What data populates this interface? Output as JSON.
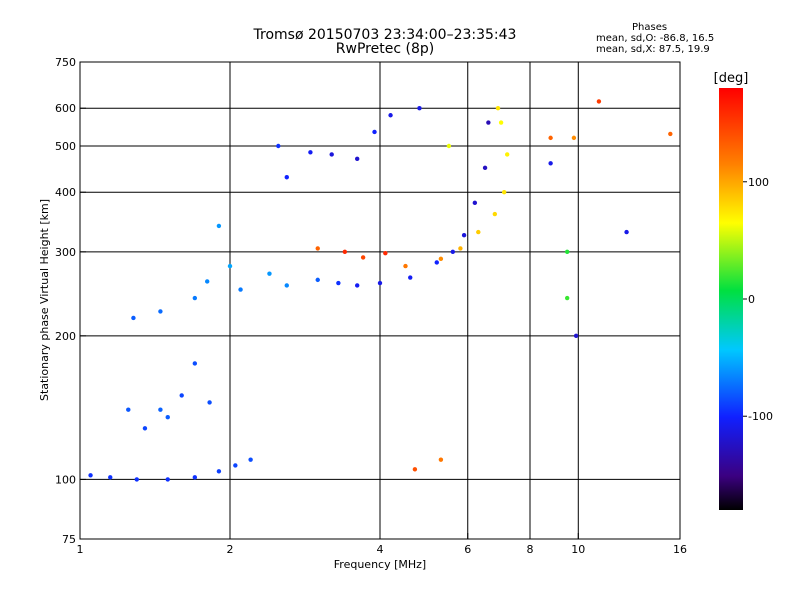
{
  "title": "Tromsø 20150703 23:34:00–23:35:43",
  "subtitle": "RwPretec (8p)",
  "stats": {
    "heading": "Phases",
    "o_line": "mean, sd,O: -86.8, 16.5",
    "x_line": "mean, sd,X: 87.5, 19.9"
  },
  "chart_data": {
    "type": "scatter",
    "title": "Tromsø 20150703 23:34:00–23:35:43",
    "subtitle": "RwPretec (8p)",
    "xlabel": "Frequency [MHz]",
    "ylabel": "Stationary phase Virtual Height [km]",
    "xscale": "log",
    "yscale": "log",
    "xlim": [
      1,
      16
    ],
    "ylim": [
      75,
      750
    ],
    "x_ticks": [
      1,
      2,
      4,
      6,
      8,
      10,
      16
    ],
    "x_tick_labels": [
      "1",
      "2",
      "4",
      "6",
      "8",
      "10",
      "16"
    ],
    "x_grid": [
      2,
      4,
      6,
      8,
      10
    ],
    "y_ticks": [
      75,
      100,
      200,
      300,
      400,
      500,
      600,
      750
    ],
    "y_tick_labels": [
      "75",
      "100",
      "200",
      "300",
      "400",
      "500",
      "600",
      "750"
    ],
    "y_grid": [
      100,
      200,
      300,
      400,
      500,
      600
    ],
    "grid": true,
    "colorbar": {
      "label": "[deg]",
      "range": [
        -180,
        180
      ],
      "ticks": [
        -100,
        0,
        100
      ],
      "tick_labels": [
        "-100",
        "0",
        "100"
      ]
    },
    "series": [
      {
        "values": [
          [
            1.05,
            102,
            -95
          ],
          [
            1.15,
            101,
            -95
          ],
          [
            1.3,
            100,
            -95
          ],
          [
            1.5,
            100,
            -95
          ],
          [
            1.7,
            101,
            -95
          ],
          [
            1.9,
            104,
            -90
          ],
          [
            2.05,
            107,
            -88
          ],
          [
            2.2,
            110,
            -85
          ],
          [
            1.6,
            150,
            -88
          ],
          [
            1.7,
            175,
            -85
          ],
          [
            1.5,
            135,
            -80
          ],
          [
            1.35,
            128,
            -88
          ],
          [
            1.25,
            140,
            -82
          ],
          [
            1.45,
            140,
            -78
          ],
          [
            1.82,
            145,
            -85
          ],
          [
            1.28,
            218,
            -80
          ],
          [
            1.45,
            225,
            -75
          ],
          [
            1.7,
            240,
            -70
          ],
          [
            1.8,
            260,
            -65
          ],
          [
            1.9,
            340,
            -60
          ],
          [
            2.0,
            280,
            -55
          ],
          [
            2.1,
            250,
            -70
          ],
          [
            2.4,
            270,
            -60
          ],
          [
            2.6,
            255,
            -65
          ],
          [
            3.0,
            262,
            -80
          ],
          [
            3.3,
            258,
            -95
          ],
          [
            3.6,
            255,
            -105
          ],
          [
            4.0,
            258,
            -110
          ],
          [
            4.6,
            265,
            -105
          ],
          [
            5.2,
            285,
            -100
          ],
          [
            5.6,
            300,
            -110
          ],
          [
            5.9,
            325,
            -115
          ],
          [
            6.2,
            380,
            -120
          ],
          [
            6.5,
            450,
            -125
          ],
          [
            6.6,
            560,
            -130
          ],
          [
            2.5,
            500,
            -95
          ],
          [
            2.9,
            485,
            -105
          ],
          [
            3.2,
            480,
            -115
          ],
          [
            3.6,
            470,
            -120
          ],
          [
            4.2,
            580,
            -110
          ],
          [
            4.8,
            600,
            -110
          ],
          [
            2.6,
            430,
            -100
          ],
          [
            3.9,
            535,
            -100
          ],
          [
            3.4,
            300,
            160
          ],
          [
            3.7,
            292,
            145
          ],
          [
            4.1,
            298,
            160
          ],
          [
            3.0,
            305,
            130
          ],
          [
            4.5,
            280,
            120
          ],
          [
            5.3,
            290,
            110
          ],
          [
            5.8,
            305,
            95
          ],
          [
            6.3,
            330,
            85
          ],
          [
            6.8,
            360,
            80
          ],
          [
            7.1,
            400,
            75
          ],
          [
            7.2,
            480,
            70
          ],
          [
            7.0,
            560,
            65
          ],
          [
            6.9,
            600,
            75
          ],
          [
            5.5,
            500,
            60
          ],
          [
            8.8,
            520,
            130
          ],
          [
            9.5,
            300,
            15
          ],
          [
            9.5,
            240,
            20
          ],
          [
            8.8,
            460,
            -110
          ],
          [
            9.8,
            520,
            110
          ],
          [
            9.9,
            200,
            -120
          ],
          [
            11.0,
            620,
            150
          ],
          [
            12.5,
            330,
            -110
          ],
          [
            15.3,
            530,
            130
          ],
          [
            4.7,
            105,
            140
          ],
          [
            5.3,
            110,
            120
          ]
        ]
      }
    ]
  }
}
